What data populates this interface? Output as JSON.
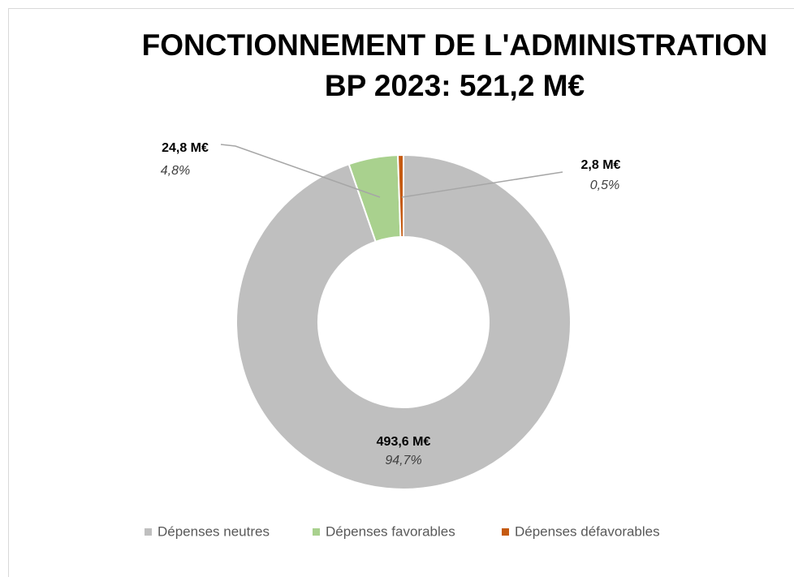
{
  "chart_data": {
    "type": "donut",
    "title": "FONCTIONNEMENT DE L'ADMINISTRATION",
    "subtitle": "BP 2023: 521,2 M€",
    "categories": [
      "Dépenses neutres",
      "Dépenses favorables",
      "Dépenses défavorables"
    ],
    "values": [
      493.6,
      24.8,
      2.8
    ],
    "value_labels": [
      "493,6 M€",
      "24,8 M€",
      "2,8 M€"
    ],
    "percent_labels": [
      "94,7%",
      "4,8%",
      "0,5%"
    ],
    "colors": [
      "#bfbfbf",
      "#a9d18e",
      "#c55a11"
    ],
    "legend": "bottom"
  }
}
